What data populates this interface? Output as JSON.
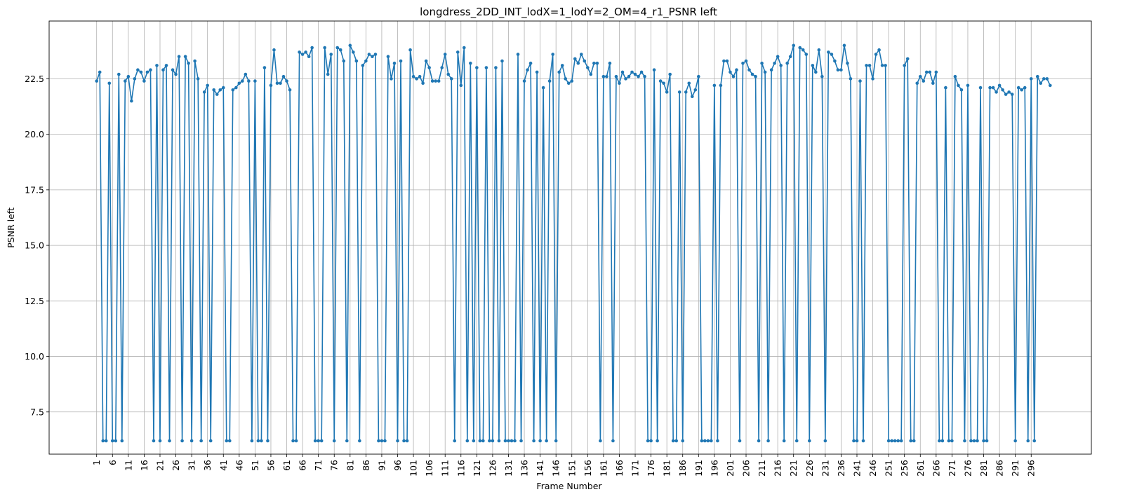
{
  "chart_data": {
    "type": "line",
    "title": "longdress_2DD_INT_lodX=1_lodY=2_OM=4_r1_PSNR left",
    "xlabel": "Frame Number",
    "ylabel": "PSNR left",
    "xlim": [
      -14,
      315
    ],
    "ylim": [
      5.6,
      25.1
    ],
    "grid": true,
    "xticks": [
      1,
      6,
      11,
      16,
      21,
      26,
      31,
      36,
      41,
      46,
      51,
      56,
      61,
      66,
      71,
      76,
      81,
      86,
      91,
      96,
      101,
      106,
      111,
      116,
      121,
      126,
      131,
      136,
      141,
      146,
      151,
      156,
      161,
      166,
      171,
      176,
      181,
      186,
      191,
      196,
      201,
      206,
      211,
      216,
      221,
      226,
      231,
      236,
      241,
      246,
      251,
      256,
      261,
      266,
      271,
      276,
      281,
      286,
      291,
      296
    ],
    "yticks": [
      7.5,
      10.0,
      12.5,
      15.0,
      17.5,
      20.0,
      22.5
    ],
    "ytick_labels": [
      "7.5",
      "10.0",
      "12.5",
      "15.0",
      "17.5",
      "20.0",
      "22.5"
    ],
    "series": [
      {
        "color": "#1f77b4",
        "marker": "circle",
        "x_start": 1,
        "values": [
          22.4,
          22.8,
          6.2,
          6.2,
          22.3,
          6.2,
          6.2,
          22.7,
          6.2,
          22.4,
          22.6,
          21.5,
          22.5,
          22.9,
          22.8,
          22.4,
          22.8,
          22.9,
          6.2,
          23.1,
          6.2,
          22.9,
          23.1,
          6.2,
          22.9,
          22.7,
          23.5,
          6.2,
          23.5,
          23.2,
          6.2,
          23.3,
          22.5,
          6.2,
          21.9,
          22.2,
          6.2,
          22.0,
          21.8,
          22.0,
          22.1,
          6.2,
          6.2,
          22.0,
          22.1,
          22.3,
          22.4,
          22.7,
          22.4,
          6.2,
          22.4,
          6.2,
          6.2,
          23.0,
          6.2,
          22.2,
          23.8,
          22.3,
          22.3,
          22.6,
          22.4,
          22.0,
          6.2,
          6.2,
          23.7,
          23.6,
          23.7,
          23.5,
          23.9,
          6.2,
          6.2,
          6.2,
          23.9,
          22.7,
          23.6,
          6.2,
          23.9,
          23.8,
          23.3,
          6.2,
          24.0,
          23.7,
          23.3,
          6.2,
          23.1,
          23.3,
          23.6,
          23.5,
          23.6,
          6.2,
          6.2,
          6.2,
          23.5,
          22.5,
          23.2,
          6.2,
          23.3,
          6.2,
          6.2,
          23.8,
          22.6,
          22.5,
          22.6,
          22.3,
          23.3,
          23.0,
          22.4,
          22.4,
          22.4,
          23.0,
          23.6,
          22.7,
          22.5,
          6.2,
          23.7,
          22.2,
          23.9,
          6.2,
          23.2,
          6.2,
          23.0,
          6.2,
          6.2,
          23.0,
          6.2,
          6.2,
          23.0,
          6.2,
          23.3,
          6.2,
          6.2,
          6.2,
          6.2,
          23.6,
          6.2,
          22.4,
          22.9,
          23.2,
          6.2,
          22.8,
          6.2,
          22.1,
          6.2,
          22.4,
          23.6,
          6.2,
          22.8,
          23.1,
          22.5,
          22.3,
          22.4,
          23.4,
          23.2,
          23.6,
          23.3,
          23.0,
          22.7,
          23.2,
          23.2,
          6.2,
          22.6,
          22.6,
          23.2,
          6.2,
          22.6,
          22.3,
          22.8,
          22.5,
          22.6,
          22.8,
          22.7,
          22.6,
          22.8,
          22.6,
          6.2,
          6.2,
          22.9,
          6.2,
          22.4,
          22.3,
          21.9,
          22.7,
          6.2,
          6.2,
          21.9,
          6.2,
          21.9,
          22.3,
          21.7,
          22.0,
          22.6,
          6.2,
          6.2,
          6.2,
          6.2,
          22.2,
          6.2,
          22.2,
          23.3,
          23.3,
          22.8,
          22.6,
          22.9,
          6.2,
          23.2,
          23.3,
          22.9,
          22.7,
          22.6,
          6.2,
          23.2,
          22.8,
          6.2,
          22.9,
          23.2,
          23.5,
          23.1,
          6.2,
          23.2,
          23.5,
          24.0,
          6.2,
          23.9,
          23.8,
          23.6,
          6.2,
          23.1,
          22.8,
          23.8,
          22.6,
          6.2,
          23.7,
          23.6,
          23.3,
          22.9,
          22.9,
          24.0,
          23.2,
          22.5,
          6.2,
          6.2,
          22.4,
          6.2,
          23.1,
          23.1,
          22.5,
          23.6,
          23.8,
          23.1,
          23.1,
          6.2,
          6.2,
          6.2,
          6.2,
          6.2,
          23.1,
          23.4,
          6.2,
          6.2,
          22.3,
          22.6,
          22.4,
          22.8,
          22.8,
          22.3,
          22.8,
          6.2,
          6.2,
          22.1,
          6.2,
          6.2,
          22.6,
          22.2,
          22.0,
          6.2,
          22.2,
          6.2,
          6.2,
          6.2,
          22.1,
          6.2,
          6.2,
          22.1,
          22.1,
          21.9,
          22.2,
          22.0,
          21.8,
          21.9,
          21.8,
          6.2,
          22.1,
          22.0,
          22.1,
          6.2,
          22.5,
          6.2,
          22.6,
          22.3,
          22.5,
          22.5,
          22.2
        ]
      }
    ]
  }
}
